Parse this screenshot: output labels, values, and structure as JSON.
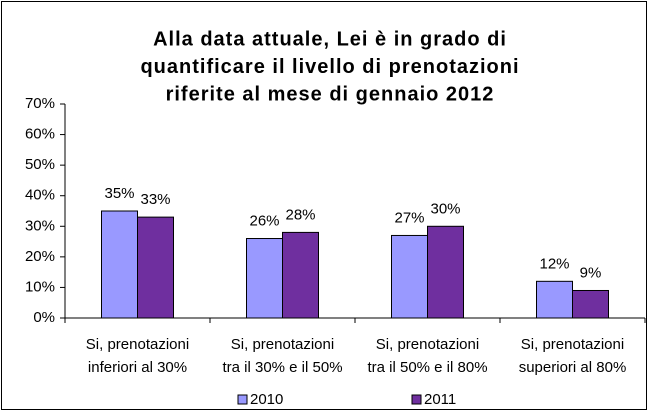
{
  "chart_data": {
    "type": "bar",
    "title": [
      "Alla data attuale, Lei è in grado di",
      "quantificare il livello di prenotazioni",
      "riferite al mese di gennaio 2012"
    ],
    "categories": [
      [
        "Si, prenotazioni",
        "inferiori al 30%"
      ],
      [
        "Si, prenotazioni",
        "tra il 30% e il 50%"
      ],
      [
        "Si, prenotazioni",
        "tra il 50% e il 80%"
      ],
      [
        "Si, prenotazioni",
        "superiori al 80%"
      ]
    ],
    "series": [
      {
        "name": "2010",
        "color": "#9999ff",
        "values": [
          35,
          26,
          27,
          12
        ],
        "value_labels": [
          "35%",
          "26%",
          "27%",
          "12%"
        ]
      },
      {
        "name": "2011",
        "color": "#6f2f9f",
        "values": [
          33,
          28,
          30,
          9
        ],
        "value_labels": [
          "33%",
          "28%",
          "30%",
          "9%"
        ]
      }
    ],
    "ylim": [
      0,
      70
    ],
    "yticks": [
      {
        "value": 0,
        "label": "0%"
      },
      {
        "value": 10,
        "label": "10%"
      },
      {
        "value": 20,
        "label": "20%"
      },
      {
        "value": 30,
        "label": "30%"
      },
      {
        "value": 40,
        "label": "40%"
      },
      {
        "value": 50,
        "label": "50%"
      },
      {
        "value": 60,
        "label": "60%"
      },
      {
        "value": 70,
        "label": "70%"
      }
    ],
    "grid": false,
    "legend": "bottom"
  }
}
